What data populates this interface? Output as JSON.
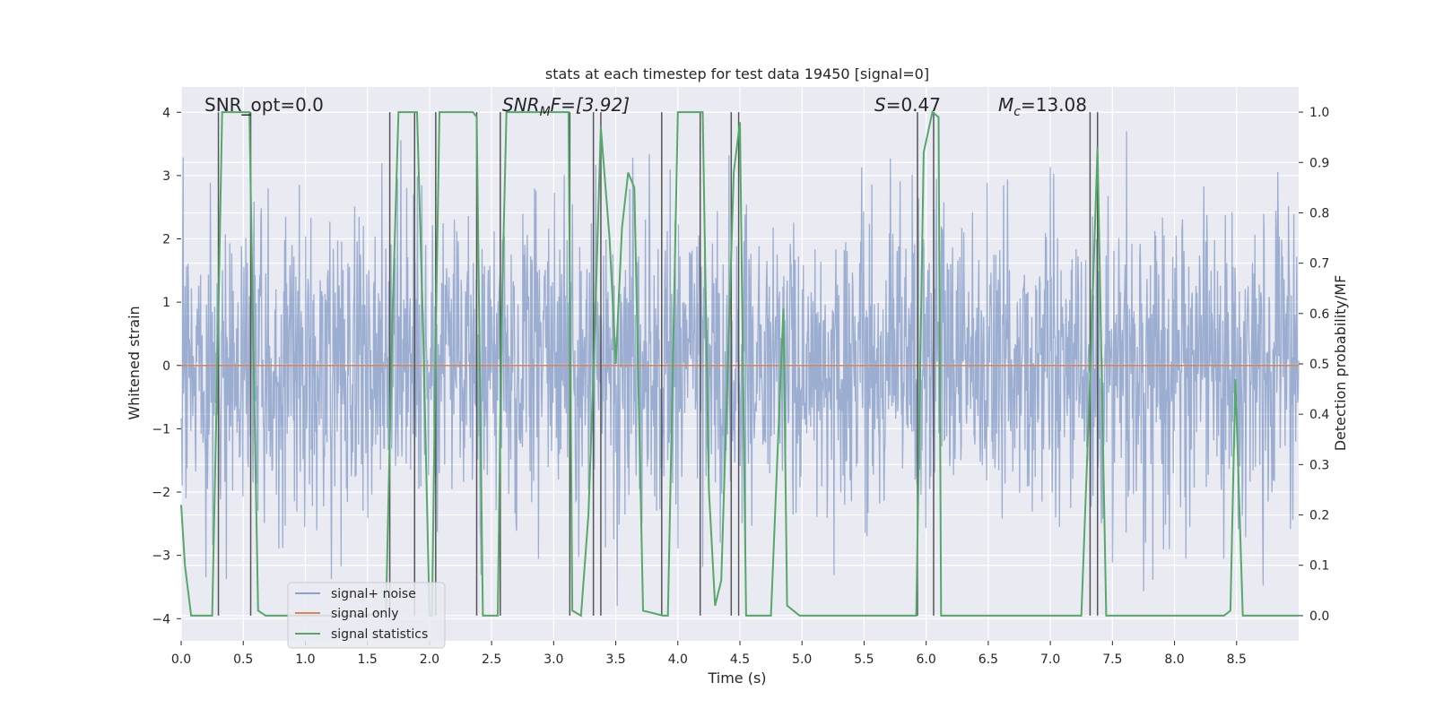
{
  "chart_data": {
    "type": "line",
    "title": "stats at each timestep for test data 19450 [signal=0]",
    "xlabel": "Time (s)",
    "ylabel": "Whitened strain",
    "ylabel_right": "Detection probability/MF",
    "xlim": [
      0,
      9.0
    ],
    "ylim": [
      -4.35,
      4.4
    ],
    "ylim_right": [
      -0.05,
      1.05
    ],
    "xticks": [
      0.0,
      0.5,
      1.0,
      1.5,
      2.0,
      2.5,
      3.0,
      3.5,
      4.0,
      4.5,
      5.0,
      5.5,
      6.0,
      6.5,
      7.0,
      7.5,
      8.0,
      8.5
    ],
    "xtick_labels": [
      "0.0",
      "0.5",
      "1.0",
      "1.5",
      "2.0",
      "2.5",
      "3.0",
      "3.5",
      "4.0",
      "4.5",
      "5.0",
      "5.5",
      "6.0",
      "6.5",
      "7.0",
      "7.5",
      "8.0",
      "8.5"
    ],
    "yticks": [
      4,
      3,
      2,
      1,
      0,
      -1,
      -2,
      -3,
      -4
    ],
    "ytick_labels": [
      "4",
      "3",
      "2",
      "1",
      "0",
      "−1",
      "−2",
      "−3",
      "−4"
    ],
    "yticks_right": [
      1.0,
      0.9,
      0.8,
      0.7,
      0.6,
      0.5,
      0.4,
      0.3,
      0.2,
      0.1,
      0.0
    ],
    "ytick_labels_right": [
      "1.0",
      "0.9",
      "0.8",
      "0.7",
      "0.6",
      "0.5",
      "0.4",
      "0.3",
      "0.2",
      "0.1",
      "0.0"
    ],
    "annotations": {
      "snr_opt": "SNR_opt=0.0",
      "snr_mf_main": "SNR",
      "snr_mf_sub": "M",
      "snr_mf_rest": "F=[3.92]",
      "s_main": "S",
      "s_rest": "=0.47",
      "mc_main": "M",
      "mc_sub": "c",
      "mc_rest": "=13.08"
    },
    "legend": {
      "position": "lower-left",
      "entries": [
        "signal+ noise",
        "signal only",
        "signal statistics"
      ]
    },
    "series": [
      {
        "name": "signal+ noise",
        "color": "#4c72b0",
        "description": "whitened strain, sample rate ~ 256 Hz, gaussian noise std ~1.2"
      },
      {
        "name": "signal only",
        "color": "#dd8452",
        "values_constant": 0
      },
      {
        "name": "signal statistics",
        "color": "#55a868",
        "axis": "right",
        "x": [
          0.0,
          0.03,
          0.08,
          0.25,
          0.3,
          0.33,
          0.38,
          0.55,
          0.58,
          0.62,
          0.68,
          0.8,
          1.0,
          1.2,
          1.5,
          1.65,
          1.7,
          1.75,
          1.8,
          1.9,
          1.95,
          2.0,
          2.02,
          2.05,
          2.08,
          2.12,
          2.2,
          2.35,
          2.38,
          2.43,
          2.55,
          2.58,
          2.62,
          2.8,
          3.0,
          3.12,
          3.15,
          3.22,
          3.28,
          3.33,
          3.38,
          3.45,
          3.5,
          3.55,
          3.6,
          3.65,
          3.72,
          3.88,
          3.92,
          4.0,
          4.2,
          4.25,
          4.3,
          4.35,
          4.45,
          4.5,
          4.55,
          4.75,
          4.85,
          4.88,
          4.98,
          5.2,
          5.5,
          5.8,
          5.92,
          5.98,
          6.05,
          6.1,
          6.12,
          6.18,
          6.4,
          7.0,
          7.25,
          7.32,
          7.38,
          7.45,
          7.6,
          8.0,
          8.4,
          8.45,
          8.49,
          8.55,
          8.6,
          9.0
        ],
        "y": [
          0.22,
          0.1,
          0.0,
          0.0,
          0.6,
          1.0,
          1.0,
          1.0,
          0.55,
          0.01,
          0.0,
          0.0,
          0.0,
          0.0,
          0.0,
          0.01,
          0.58,
          1.0,
          1.0,
          1.0,
          0.55,
          0.0,
          0.0,
          0.55,
          1.0,
          1.0,
          1.0,
          1.0,
          0.99,
          0.0,
          0.0,
          0.58,
          1.0,
          1.0,
          1.0,
          1.0,
          0.01,
          0.0,
          0.2,
          0.55,
          0.97,
          0.75,
          0.5,
          0.77,
          0.88,
          0.85,
          0.01,
          0.0,
          0.0,
          1.0,
          1.0,
          0.25,
          0.02,
          0.07,
          0.88,
          0.98,
          0.0,
          0.0,
          0.61,
          0.02,
          0.0,
          0.0,
          0.0,
          0.0,
          0.0,
          0.92,
          1.0,
          0.99,
          0.0,
          0.0,
          0.0,
          0.0,
          0.0,
          0.47,
          0.93,
          0.0,
          0.0,
          0.0,
          0.0,
          0.01,
          0.47,
          0.0,
          0.0,
          0.0
        ]
      }
    ],
    "vertical_markers": [
      0.3,
      0.56,
      1.68,
      1.88,
      2.05,
      2.38,
      2.57,
      3.13,
      3.32,
      3.38,
      3.87,
      4.18,
      4.43,
      4.49,
      5.93,
      6.06,
      7.32,
      7.38
    ],
    "marker_color": "#555555",
    "plot_background": "#eaeaf2",
    "grid_color": "#ffffff"
  }
}
